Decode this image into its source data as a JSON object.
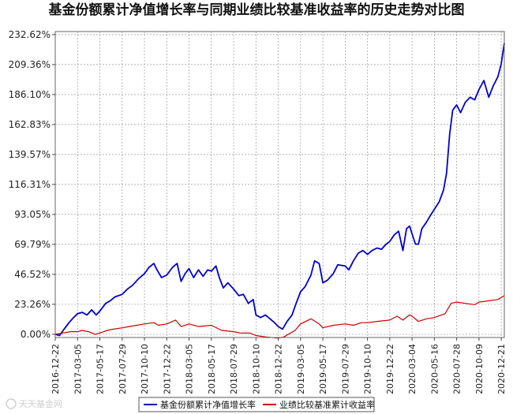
{
  "chart_data": {
    "type": "line",
    "title": "基金份额累计净值增长率与同期业绩比较基准收益率的历史走势对比图",
    "xlabel": "",
    "ylabel": "",
    "ylim": [
      -2.5,
      235
    ],
    "yticks": [
      "232.62%",
      "209.36%",
      "186.10%",
      "162.83%",
      "139.57%",
      "116.31%",
      "93.05%",
      "69.79%",
      "46.52%",
      "23.26%",
      "0.00%"
    ],
    "ytick_values": [
      232.62,
      209.36,
      186.1,
      162.83,
      139.57,
      116.31,
      93.05,
      69.79,
      46.52,
      23.26,
      0.0
    ],
    "xticks": [
      "2016-12-22",
      "2017-03-05",
      "2017-05-17",
      "2017-07-29",
      "2017-10-10",
      "2017-12-22",
      "2018-03-05",
      "2018-05-17",
      "2018-07-29",
      "2018-10-10",
      "2018-12-22",
      "2019-03-05",
      "2019-05-17",
      "2019-07-29",
      "2019-10-10",
      "2019-12-22",
      "2020-03-04",
      "2020-05-16",
      "2020-07-28",
      "2020-10-09",
      "2020-12-21"
    ],
    "x_range": [
      "2016-12-22",
      "2020-12-31"
    ],
    "grid": true,
    "legend_position": "bottom",
    "series": [
      {
        "name": "基金份额累计净值增长率",
        "color": "#0000cc",
        "points": [
          [
            "2016-12-22",
            0
          ],
          [
            "2017-01-05",
            -1
          ],
          [
            "2017-01-20",
            4
          ],
          [
            "2017-02-05",
            9
          ],
          [
            "2017-02-20",
            13
          ],
          [
            "2017-03-05",
            16
          ],
          [
            "2017-03-20",
            17
          ],
          [
            "2017-04-05",
            15
          ],
          [
            "2017-04-20",
            19
          ],
          [
            "2017-05-05",
            15
          ],
          [
            "2017-05-17",
            18
          ],
          [
            "2017-06-05",
            24
          ],
          [
            "2017-06-20",
            26
          ],
          [
            "2017-07-05",
            29
          ],
          [
            "2017-07-29",
            31
          ],
          [
            "2017-08-15",
            35
          ],
          [
            "2017-09-01",
            38
          ],
          [
            "2017-09-20",
            43
          ],
          [
            "2017-10-10",
            47
          ],
          [
            "2017-10-25",
            52
          ],
          [
            "2017-11-10",
            55
          ],
          [
            "2017-11-20",
            50
          ],
          [
            "2017-12-05",
            44
          ],
          [
            "2017-12-22",
            46
          ],
          [
            "2018-01-10",
            52
          ],
          [
            "2018-01-25",
            55
          ],
          [
            "2018-02-07",
            41
          ],
          [
            "2018-02-20",
            47
          ],
          [
            "2018-03-05",
            51
          ],
          [
            "2018-03-20",
            44
          ],
          [
            "2018-04-05",
            50
          ],
          [
            "2018-04-20",
            45
          ],
          [
            "2018-05-05",
            50
          ],
          [
            "2018-05-17",
            49
          ],
          [
            "2018-06-01",
            53
          ],
          [
            "2018-06-12",
            44
          ],
          [
            "2018-06-25",
            36
          ],
          [
            "2018-07-10",
            40
          ],
          [
            "2018-07-29",
            35
          ],
          [
            "2018-08-15",
            30
          ],
          [
            "2018-08-30",
            31
          ],
          [
            "2018-09-15",
            24
          ],
          [
            "2018-10-01",
            27
          ],
          [
            "2018-10-10",
            15
          ],
          [
            "2018-10-25",
            13
          ],
          [
            "2018-11-10",
            15
          ],
          [
            "2018-11-25",
            12
          ],
          [
            "2018-12-10",
            9
          ],
          [
            "2018-12-22",
            6
          ],
          [
            "2019-01-05",
            4
          ],
          [
            "2019-01-20",
            10
          ],
          [
            "2019-02-05",
            15
          ],
          [
            "2019-02-20",
            25
          ],
          [
            "2019-03-05",
            33
          ],
          [
            "2019-03-20",
            37
          ],
          [
            "2019-04-08",
            46
          ],
          [
            "2019-04-20",
            57
          ],
          [
            "2019-05-05",
            55
          ],
          [
            "2019-05-17",
            40
          ],
          [
            "2019-06-01",
            42
          ],
          [
            "2019-06-20",
            47
          ],
          [
            "2019-07-05",
            54
          ],
          [
            "2019-07-29",
            53
          ],
          [
            "2019-08-10",
            50
          ],
          [
            "2019-08-25",
            57
          ],
          [
            "2019-09-10",
            63
          ],
          [
            "2019-09-25",
            65
          ],
          [
            "2019-10-10",
            62
          ],
          [
            "2019-10-25",
            65
          ],
          [
            "2019-11-10",
            67
          ],
          [
            "2019-11-25",
            66
          ],
          [
            "2019-12-10",
            70
          ],
          [
            "2019-12-22",
            72
          ],
          [
            "2020-01-05",
            77
          ],
          [
            "2020-01-20",
            80
          ],
          [
            "2020-02-03",
            65
          ],
          [
            "2020-02-15",
            82
          ],
          [
            "2020-02-25",
            84
          ],
          [
            "2020-03-04",
            78
          ],
          [
            "2020-03-15",
            70
          ],
          [
            "2020-03-25",
            70
          ],
          [
            "2020-04-05",
            82
          ],
          [
            "2020-04-20",
            87
          ],
          [
            "2020-05-05",
            93
          ],
          [
            "2020-05-16",
            97
          ],
          [
            "2020-06-01",
            103
          ],
          [
            "2020-06-15",
            112
          ],
          [
            "2020-06-25",
            125
          ],
          [
            "2020-07-05",
            155
          ],
          [
            "2020-07-15",
            174
          ],
          [
            "2020-07-28",
            178
          ],
          [
            "2020-08-10",
            172
          ],
          [
            "2020-08-25",
            180
          ],
          [
            "2020-09-10",
            184
          ],
          [
            "2020-09-25",
            182
          ],
          [
            "2020-10-09",
            190
          ],
          [
            "2020-10-25",
            197
          ],
          [
            "2020-11-10",
            184
          ],
          [
            "2020-11-25",
            193
          ],
          [
            "2020-12-10",
            200
          ],
          [
            "2020-12-21",
            210
          ],
          [
            "2020-12-31",
            226
          ]
        ]
      },
      {
        "name": "业绩比较基准累计收益率",
        "color": "#cc0000",
        "points": [
          [
            "2016-12-22",
            0
          ],
          [
            "2017-01-15",
            1
          ],
          [
            "2017-02-10",
            2
          ],
          [
            "2017-03-05",
            2
          ],
          [
            "2017-03-20",
            3
          ],
          [
            "2017-04-10",
            2
          ],
          [
            "2017-05-01",
            0
          ],
          [
            "2017-05-17",
            1
          ],
          [
            "2017-06-10",
            3
          ],
          [
            "2017-07-01",
            4
          ],
          [
            "2017-07-29",
            5
          ],
          [
            "2017-08-20",
            6
          ],
          [
            "2017-09-15",
            7
          ],
          [
            "2017-10-10",
            8
          ],
          [
            "2017-11-10",
            9
          ],
          [
            "2017-11-25",
            7
          ],
          [
            "2017-12-22",
            8
          ],
          [
            "2018-01-20",
            11
          ],
          [
            "2018-02-07",
            6
          ],
          [
            "2018-03-05",
            8
          ],
          [
            "2018-04-05",
            6
          ],
          [
            "2018-05-17",
            7
          ],
          [
            "2018-06-20",
            3
          ],
          [
            "2018-07-29",
            2
          ],
          [
            "2018-08-20",
            1
          ],
          [
            "2018-09-20",
            1
          ],
          [
            "2018-10-10",
            -1
          ],
          [
            "2018-11-10",
            -2
          ],
          [
            "2018-12-22",
            -3
          ],
          [
            "2019-01-10",
            -2
          ],
          [
            "2019-02-15",
            3
          ],
          [
            "2019-03-05",
            8
          ],
          [
            "2019-04-08",
            12
          ],
          [
            "2019-05-05",
            8
          ],
          [
            "2019-05-17",
            5
          ],
          [
            "2019-06-20",
            7
          ],
          [
            "2019-07-29",
            8
          ],
          [
            "2019-08-25",
            7
          ],
          [
            "2019-09-20",
            9
          ],
          [
            "2019-10-10",
            9
          ],
          [
            "2019-11-10",
            10
          ],
          [
            "2019-12-22",
            11
          ],
          [
            "2020-01-15",
            14
          ],
          [
            "2020-02-03",
            11
          ],
          [
            "2020-02-25",
            15
          ],
          [
            "2020-03-04",
            14
          ],
          [
            "2020-03-25",
            10
          ],
          [
            "2020-04-20",
            12
          ],
          [
            "2020-05-16",
            13
          ],
          [
            "2020-06-20",
            16
          ],
          [
            "2020-07-10",
            24
          ],
          [
            "2020-07-28",
            25
          ],
          [
            "2020-08-25",
            24
          ],
          [
            "2020-09-25",
            23
          ],
          [
            "2020-10-09",
            25
          ],
          [
            "2020-11-10",
            26
          ],
          [
            "2020-12-10",
            27
          ],
          [
            "2020-12-31",
            30
          ]
        ]
      }
    ]
  },
  "watermark": "天天基金网"
}
